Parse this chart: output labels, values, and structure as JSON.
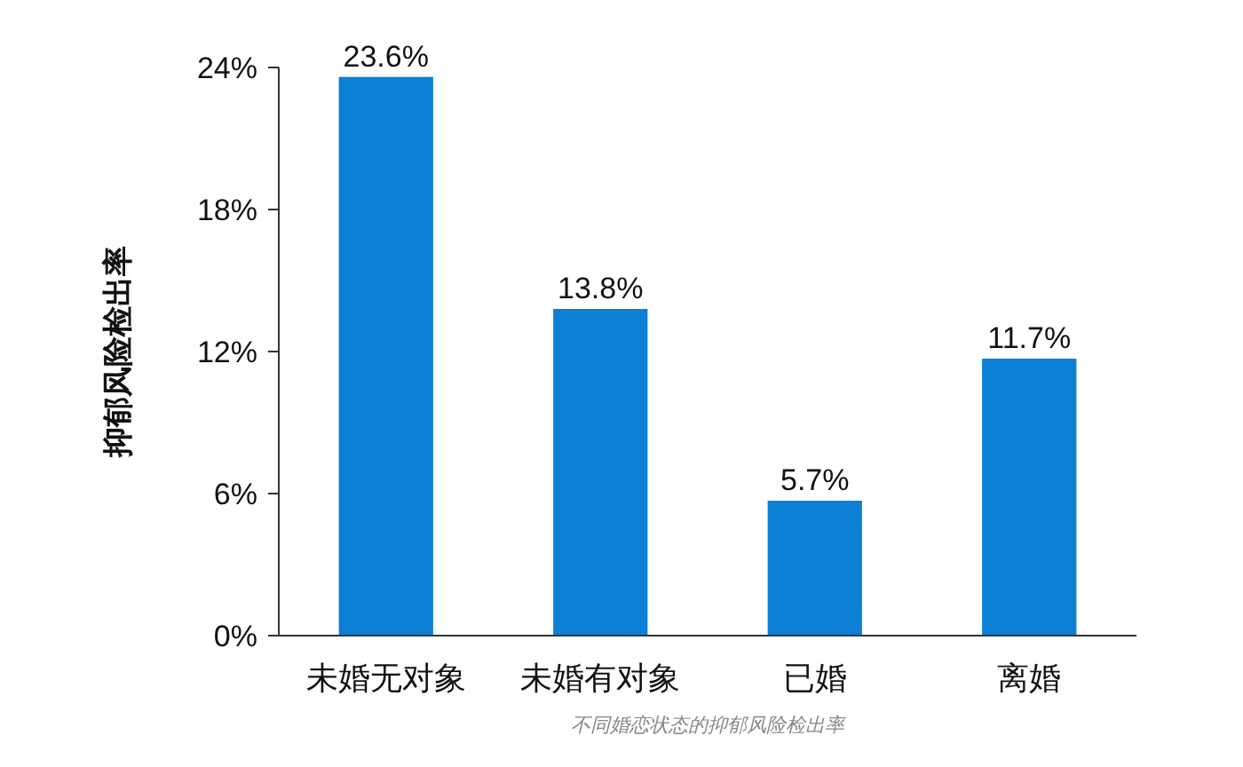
{
  "chart_data": {
    "type": "bar",
    "ylabel": "抑郁风险检出率",
    "categories": [
      "未婚无对象",
      "未婚有对象",
      "已婚",
      "离婚"
    ],
    "values": [
      23.6,
      13.8,
      5.7,
      11.7
    ],
    "value_labels": [
      "23.6%",
      "13.8%",
      "5.7%",
      "11.7%"
    ],
    "color": "#0a7fd4",
    "ylim": [
      0,
      24
    ],
    "yticks": [
      {
        "value": 0,
        "label": "0%"
      },
      {
        "value": 6,
        "label": "6%"
      },
      {
        "value": 12,
        "label": "12%"
      },
      {
        "value": 18,
        "label": "18%"
      },
      {
        "value": 24,
        "label": "24%"
      }
    ],
    "grid": false,
    "annotations": [
      "不同婚恋状态的抑郁风险检出率"
    ]
  }
}
